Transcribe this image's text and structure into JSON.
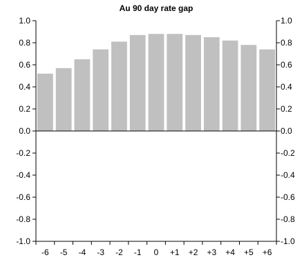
{
  "chart_data": {
    "type": "bar",
    "title": "Au 90 day rate gap",
    "xlabel": "",
    "ylabel": "",
    "categories": [
      "-6",
      "-5",
      "-4",
      "-3",
      "-2",
      "-1",
      "0",
      "+1",
      "+2",
      "+3",
      "+4",
      "+5",
      "+6"
    ],
    "values": [
      0.52,
      0.57,
      0.65,
      0.74,
      0.81,
      0.87,
      0.88,
      0.88,
      0.87,
      0.85,
      0.82,
      0.78,
      0.74
    ],
    "ylim": [
      -1.0,
      1.0
    ],
    "yticks": [
      "-1.0",
      "-0.8",
      "-0.6",
      "-0.4",
      "-0.2",
      "0.0",
      "0.2",
      "0.4",
      "0.6",
      "0.8",
      "1.0"
    ],
    "y2ticks": [
      "-1.0",
      "-0.8",
      "-0.6",
      "-0.4",
      "-0.2",
      "0.0",
      "0.2",
      "0.4",
      "0.6",
      "0.8",
      "1.0"
    ],
    "grid": false,
    "bar_color": "#c0c0c0"
  }
}
